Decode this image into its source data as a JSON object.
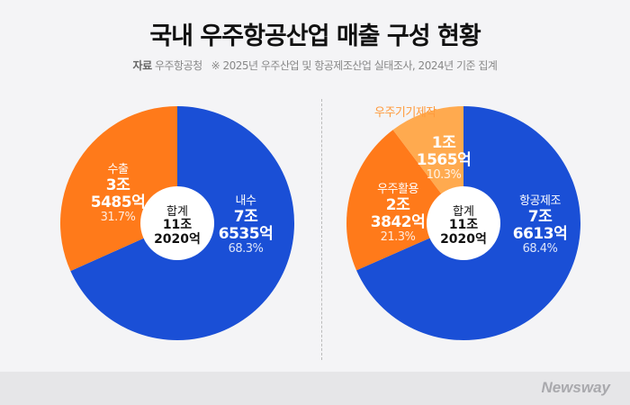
{
  "title": "국내 우주항공산업 매출 구성 현황",
  "source": {
    "label": "자료",
    "org": "우주항공청",
    "note": "※ 2025년 우주산업 및 항공제조산업 실태조사, 2024년 기준 집계"
  },
  "brand": "Newsway",
  "colors": {
    "blue": "#1a4fd6",
    "orange": "#ff7a1a",
    "light_orange": "#ffaa4f",
    "background": "#f4f4f6"
  },
  "chart_data": [
    {
      "type": "pie",
      "donut_center": {
        "label": "합계",
        "value_line1": "11조",
        "value_line2": "2020억"
      },
      "slices": [
        {
          "name": "내수",
          "value_line1": "7조",
          "value_line2": "6535억",
          "percent": 68.3,
          "percent_label": "68.3%",
          "color": "#1a4fd6"
        },
        {
          "name": "수출",
          "value_line1": "3조",
          "value_line2": "5485억",
          "percent": 31.7,
          "percent_label": "31.7%",
          "color": "#ff7a1a"
        }
      ]
    },
    {
      "type": "pie",
      "donut_center": {
        "label": "합계",
        "value_line1": "11조",
        "value_line2": "2020억"
      },
      "slices": [
        {
          "name": "항공제조",
          "value_line1": "7조",
          "value_line2": "6613억",
          "percent": 68.4,
          "percent_label": "68.4%",
          "color": "#1a4fd6"
        },
        {
          "name": "우주활용",
          "value_line1": "2조",
          "value_line2": "3842억",
          "percent": 21.3,
          "percent_label": "21.3%",
          "color": "#ff7a1a"
        },
        {
          "name": "우주기기제작",
          "value_line1": "1조",
          "value_line2": "1565억",
          "percent": 10.3,
          "percent_label": "10.3%",
          "color": "#ffaa4f"
        }
      ]
    }
  ]
}
